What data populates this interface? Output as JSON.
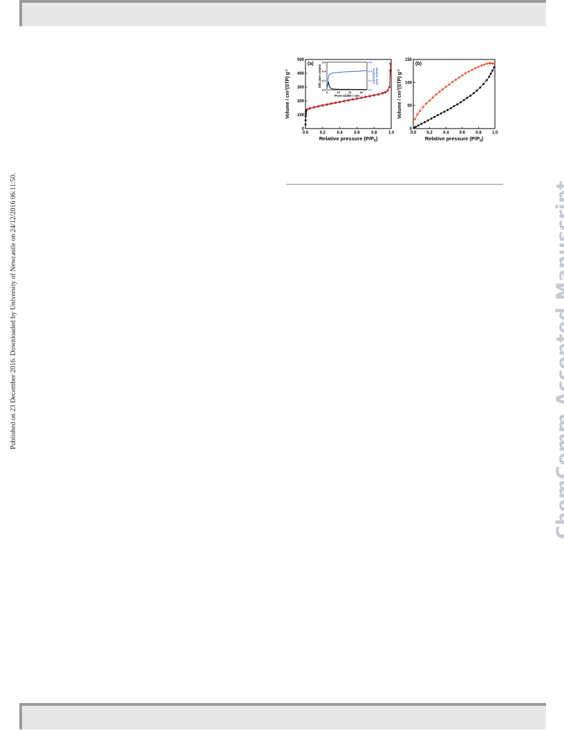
{
  "publication_note": "Published on 23 December 2016. Downloaded by University of Newcastle on 24/12/2016 06:11:50.",
  "watermark": "ChemComm Accepted Manuscript",
  "colors": {
    "black_series": "#111111",
    "red_series": "#dd1c1c",
    "orange_series": "#f0502a",
    "blue_series": "#4a72c0",
    "watermark": "#c6c9d3"
  },
  "chart_data": [
    {
      "type": "scatter",
      "panel_label": "(a)",
      "ylabel_main": "Volume / cm",
      "ylabel_sup": "3",
      "ylabel_mid": "(STP) g",
      "ylabel_sup2": "-1",
      "xlabel_main": "Relative pressure (P/P",
      "xlabel_sub": "0",
      "xlabel_end": ")",
      "xlim": [
        0.0,
        1.0
      ],
      "ylim": [
        0,
        500
      ],
      "xticks": [
        "0.0",
        "0.2",
        "0.4",
        "0.6",
        "0.8",
        "1.0"
      ],
      "yticks": [
        "0",
        "100",
        "200",
        "300",
        "400",
        "500"
      ],
      "series": [
        {
          "color": "black",
          "x": [
            0.0005,
            0.001,
            0.002,
            0.003,
            0.005,
            0.008,
            0.01,
            0.05,
            0.1,
            0.15,
            0.2,
            0.25,
            0.3,
            0.35,
            0.4,
            0.45,
            0.5,
            0.55,
            0.6,
            0.65,
            0.7,
            0.75,
            0.8,
            0.85,
            0.9,
            0.93,
            0.96,
            0.98,
            0.99
          ],
          "y": [
            30,
            60,
            90,
            110,
            125,
            130,
            133,
            145,
            153,
            160,
            167,
            173,
            180,
            186,
            192,
            198,
            204,
            210,
            216,
            222,
            228,
            234,
            240,
            247,
            255,
            262,
            275,
            300,
            420
          ]
        },
        {
          "color": "red",
          "x": [
            0.99,
            0.98,
            0.96,
            0.93,
            0.9,
            0.85,
            0.8,
            0.75,
            0.7,
            0.65,
            0.6,
            0.55,
            0.5,
            0.45,
            0.4,
            0.35,
            0.3,
            0.25,
            0.2,
            0.15,
            0.1,
            0.05,
            0.02
          ],
          "y": [
            470,
            300,
            277,
            264,
            257,
            249,
            242,
            236,
            230,
            224,
            218,
            212,
            206,
            200,
            194,
            188,
            182,
            175,
            169,
            162,
            155,
            147,
            140
          ]
        }
      ],
      "inset": {
        "type": "line",
        "ylabel_left": "Diff. pore volume",
        "ylabel_right_1": "Cumulative",
        "ylabel_right_2": "pore volume",
        "xlabel": "Pore width / nm",
        "xlim": [
          0,
          35
        ],
        "ylim_left": [
          0.0,
          0.6
        ],
        "ylim_right": [
          0.0,
          0.6
        ],
        "xticks": [
          "0",
          "10",
          "20",
          "30"
        ],
        "yticks_left": [
          "0.0",
          "0.2",
          "0.4",
          "0.6"
        ],
        "yticks_right": [
          "0.0",
          "0.2",
          "0.4",
          "0.6"
        ],
        "series": [
          {
            "color": "black",
            "axis": "left",
            "x": [
              0.8,
              1.2,
              1.6,
              2.0,
              2.5,
              3,
              4,
              5,
              7,
              10,
              15,
              20,
              25,
              30,
              35
            ],
            "y": [
              0.1,
              0.18,
              0.14,
              0.09,
              0.06,
              0.04,
              0.03,
              0.02,
              0.015,
              0.012,
              0.01,
              0.01,
              0.008,
              0.008,
              0.007
            ]
          },
          {
            "color": "blue",
            "axis": "right",
            "x": [
              0.5,
              1,
              1.5,
              2,
              3,
              4,
              6,
              8,
              10,
              15,
              20,
              25,
              30,
              35
            ],
            "y": [
              0.05,
              0.2,
              0.3,
              0.33,
              0.35,
              0.36,
              0.37,
              0.375,
              0.38,
              0.39,
              0.395,
              0.4,
              0.41,
              0.42
            ]
          }
        ]
      }
    },
    {
      "type": "scatter",
      "panel_label": "(b)",
      "ylabel_main": "Volume / cm",
      "ylabel_sup": "3",
      "ylabel_mid": "(STP) g",
      "ylabel_sup2": "-1",
      "xlabel_main": "Relative pressure (P/P",
      "xlabel_sub": "0",
      "xlabel_end": ")",
      "xlim": [
        0.0,
        1.0
      ],
      "ylim": [
        0,
        160
      ],
      "xticks": [
        "0.0",
        "0.2",
        "0.4",
        "0.6",
        "0.8",
        "1.0"
      ],
      "yticks": [
        "0",
        "50",
        "100",
        "150"
      ],
      "series": [
        {
          "color": "black",
          "x": [
            0.01,
            0.03,
            0.06,
            0.1,
            0.14,
            0.18,
            0.22,
            0.26,
            0.3,
            0.34,
            0.38,
            0.42,
            0.46,
            0.5,
            0.54,
            0.58,
            0.62,
            0.66,
            0.7,
            0.74,
            0.78,
            0.82,
            0.86,
            0.9,
            0.93,
            0.95,
            0.97,
            0.99
          ],
          "y": [
            2,
            4,
            7,
            11,
            15,
            19,
            23,
            27,
            31,
            35,
            39,
            43,
            47,
            52,
            56,
            61,
            66,
            71,
            76,
            82,
            88,
            95,
            103,
            112,
            120,
            127,
            134,
            142
          ]
        },
        {
          "color": "orange",
          "x": [
            0.99,
            0.97,
            0.95,
            0.93,
            0.9,
            0.87,
            0.84,
            0.8,
            0.76,
            0.72,
            0.68,
            0.64,
            0.6,
            0.56,
            0.52,
            0.48,
            0.44,
            0.4,
            0.36,
            0.32,
            0.28,
            0.24,
            0.2,
            0.16,
            0.12,
            0.08,
            0.05,
            0.02
          ],
          "y": [
            150,
            151,
            151,
            151,
            150,
            148,
            146,
            143,
            140,
            136,
            132,
            128,
            123,
            118,
            113,
            108,
            102,
            97,
            91,
            85,
            79,
            72,
            65,
            58,
            50,
            41,
            33,
            22
          ]
        }
      ]
    }
  ]
}
